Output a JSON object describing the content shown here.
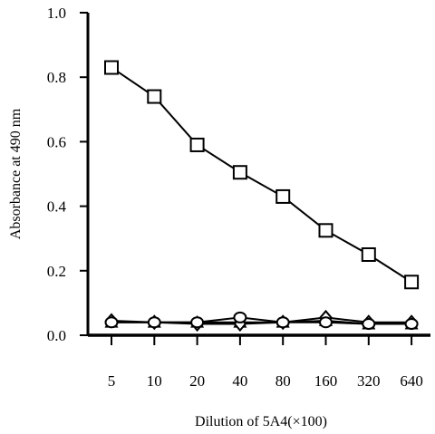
{
  "chart_data": {
    "type": "line",
    "title": "",
    "xlabel": "Dilution of 5A4(×100)",
    "ylabel": "Absorbance at 490 nm",
    "categories": [
      "5",
      "10",
      "20",
      "40",
      "80",
      "160",
      "320",
      "640"
    ],
    "ylim": [
      0.0,
      1.0
    ],
    "yticks": [
      "0.0",
      "0.2",
      "0.4",
      "0.6",
      "0.8",
      "1.0"
    ],
    "grid": false,
    "legend": "none",
    "series": [
      {
        "marker": "square",
        "values": [
          0.83,
          0.74,
          0.59,
          0.505,
          0.43,
          0.325,
          0.25,
          0.165
        ]
      },
      {
        "marker": "diamond",
        "values": [
          0.045,
          0.04,
          0.035,
          0.035,
          0.04,
          0.055,
          0.04,
          0.04
        ]
      },
      {
        "marker": "circle",
        "values": [
          0.04,
          0.04,
          0.04,
          0.055,
          0.04,
          0.04,
          0.035,
          0.035
        ]
      },
      {
        "marker": "triangle",
        "values": [
          0.04,
          0.04,
          0.04,
          0.04,
          0.04,
          0.045,
          0.035,
          0.035
        ]
      }
    ],
    "colors": {
      "line": "#000000",
      "marker_fill": "#ffffff",
      "background": "#ffffff"
    }
  }
}
